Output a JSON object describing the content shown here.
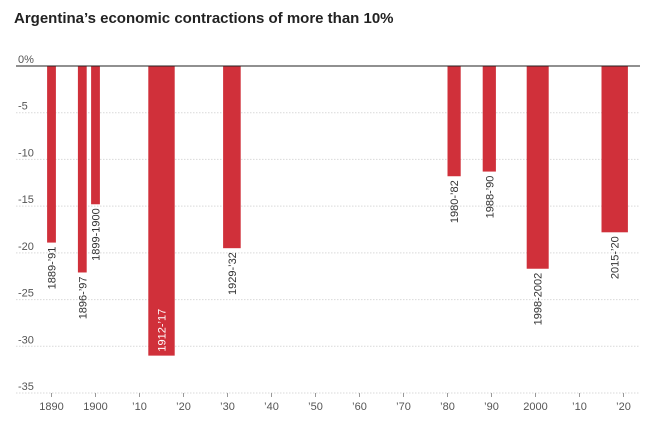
{
  "chart_data": {
    "type": "bar",
    "title": "Argentina’s economic contractions of more than 10%",
    "xlabel": "",
    "ylabel": "",
    "xlim": [
      1887,
      2022
    ],
    "ylim": [
      -35,
      0
    ],
    "y_ticks": [
      {
        "value": 0,
        "label": "0%"
      },
      {
        "value": -5,
        "label": "-5"
      },
      {
        "value": -10,
        "label": "-10"
      },
      {
        "value": -15,
        "label": "-15"
      },
      {
        "value": -20,
        "label": "-20"
      },
      {
        "value": -25,
        "label": "-25"
      },
      {
        "value": -30,
        "label": "-30"
      },
      {
        "value": -35,
        "label": "-35"
      }
    ],
    "x_ticks": [
      {
        "value": 1890,
        "label": "1890"
      },
      {
        "value": 1900,
        "label": "1900"
      },
      {
        "value": 1910,
        "label": "’10"
      },
      {
        "value": 1920,
        "label": "’20"
      },
      {
        "value": 1930,
        "label": "’30"
      },
      {
        "value": 1940,
        "label": "’40"
      },
      {
        "value": 1950,
        "label": "’50"
      },
      {
        "value": 1960,
        "label": "’60"
      },
      {
        "value": 1970,
        "label": "’70"
      },
      {
        "value": 1980,
        "label": "’80"
      },
      {
        "value": 1990,
        "label": "’90"
      },
      {
        "value": 2000,
        "label": "2000"
      },
      {
        "value": 2010,
        "label": "’10"
      },
      {
        "value": 2020,
        "label": "’20"
      }
    ],
    "grid": "horizontal",
    "color": "#d0303a",
    "bars": [
      {
        "label": "1889-’91",
        "start": 1889,
        "end": 1891,
        "value": -18.9
      },
      {
        "label": "1896-’97",
        "start": 1896,
        "end": 1898,
        "value": -22.1
      },
      {
        "label": "1899-1900",
        "start": 1899,
        "end": 1901,
        "value": -14.8
      },
      {
        "label": "1912-’17",
        "start": 1912,
        "end": 1918,
        "value": -31.0
      },
      {
        "label": "1929-’32",
        "start": 1929,
        "end": 1933,
        "value": -19.5
      },
      {
        "label": "1980-’82",
        "start": 1980,
        "end": 1983,
        "value": -11.8
      },
      {
        "label": "1988-’90",
        "start": 1988,
        "end": 1991,
        "value": -11.3
      },
      {
        "label": "1998-2002",
        "start": 1998,
        "end": 2003,
        "value": -21.7
      },
      {
        "label": "2015-’20",
        "start": 2015,
        "end": 2021,
        "value": -17.8
      }
    ]
  }
}
